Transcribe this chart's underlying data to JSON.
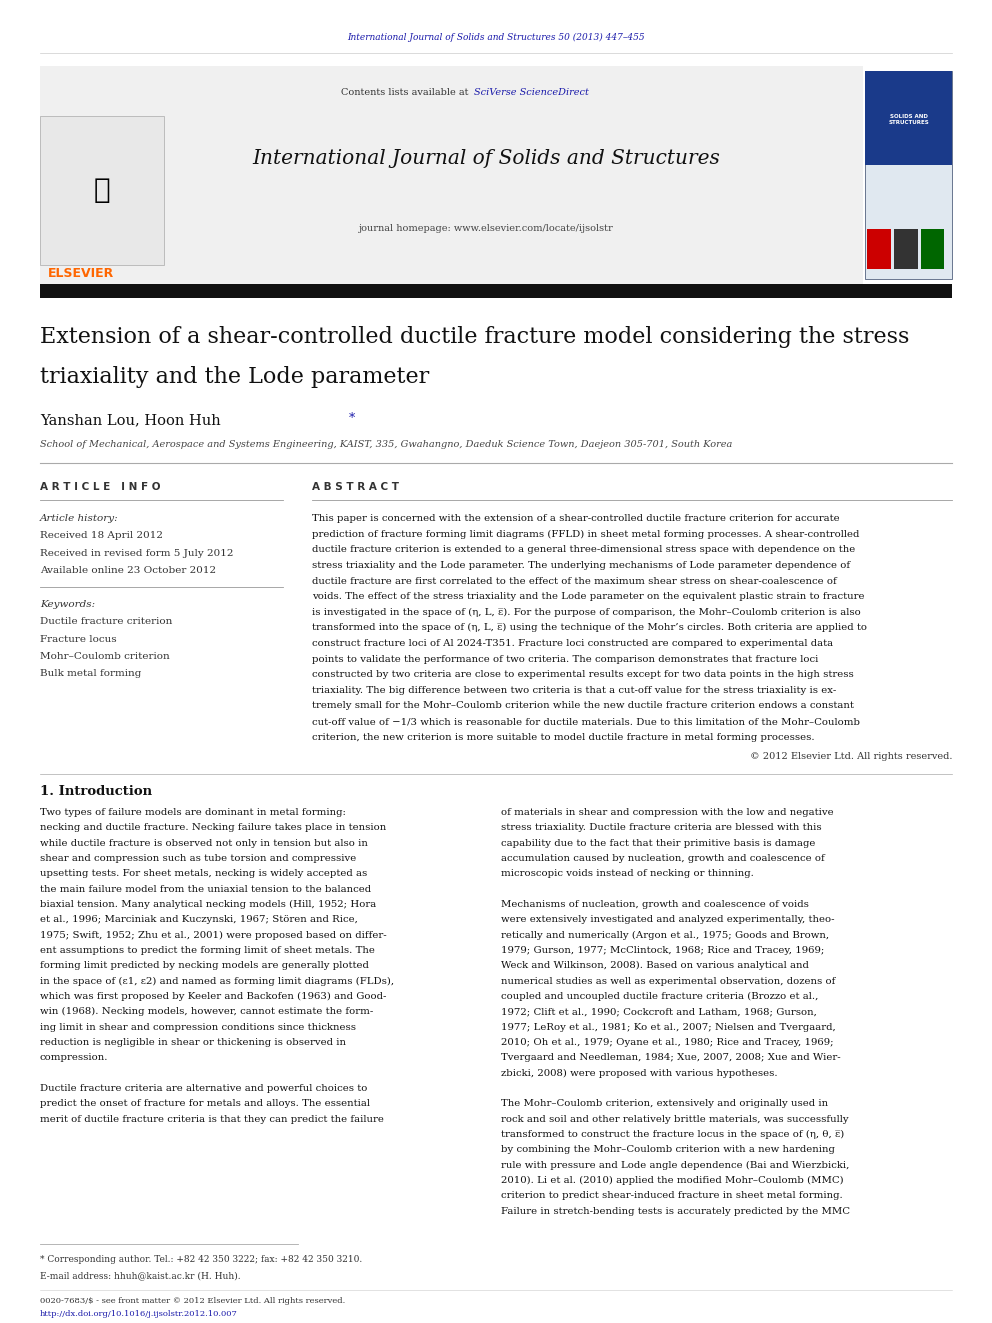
{
  "page_width": 9.92,
  "page_height": 13.23,
  "bg_color": "#ffffff",
  "header_journal_ref": "International Journal of Solids and Structures 50 (2013) 447–455",
  "header_ref_color": "#1a1aaa",
  "header_contents_text": "Contents lists available at ",
  "header_sciverse_text": "SciVerse ScienceDirect",
  "header_journal_title": "International Journal of Solids and Structures",
  "header_homepage": "journal homepage: www.elsevier.com/locate/ijsolstr",
  "elsevier_color": "#FF6600",
  "article_title_line1": "Extension of a shear-controlled ductile fracture model considering the stress",
  "article_title_line2": "triaxiality and the Lode parameter",
  "authors_main": "Yanshan Lou, Hoon Huh ",
  "authors_star": "*",
  "affiliation": "School of Mechanical, Aerospace and Systems Engineering, KAIST, 335, Gwahangno, Daeduk Science Town, Daejeon 305-701, South Korea",
  "section_article_info": "A R T I C L E   I N F O",
  "section_abstract": "A B S T R A C T",
  "article_history_label": "Article history:",
  "received_date": "Received 18 April 2012",
  "revised_date": "Received in revised form 5 July 2012",
  "online_date": "Available online 23 October 2012",
  "keywords_label": "Keywords:",
  "keywords": [
    "Ductile fracture criterion",
    "Fracture locus",
    "Mohr–Coulomb criterion",
    "Bulk metal forming"
  ],
  "copyright_text": "© 2012 Elsevier Ltd. All rights reserved.",
  "intro_heading": "1. Introduction",
  "abstract_lines": [
    "This paper is concerned with the extension of a shear-controlled ductile fracture criterion for accurate",
    "prediction of fracture forming limit diagrams (FFLD) in sheet metal forming processes. A shear-controlled",
    "ductile fracture criterion is extended to a general three-dimensional stress space with dependence on the",
    "stress triaxiality and the Lode parameter. The underlying mechanisms of Lode parameter dependence of",
    "ductile fracture are first correlated to the effect of the maximum shear stress on shear-coalescence of",
    "voids. The effect of the stress triaxiality and the Lode parameter on the equivalent plastic strain to fracture",
    "is investigated in the space of (η, L, ε̅). For the purpose of comparison, the Mohr–Coulomb criterion is also",
    "transformed into the space of (η, L, ε̅) using the technique of the Mohr’s circles. Both criteria are applied to",
    "construct fracture loci of Al 2024-T351. Fracture loci constructed are compared to experimental data",
    "points to validate the performance of two criteria. The comparison demonstrates that fracture loci",
    "constructed by two criteria are close to experimental results except for two data points in the high stress",
    "triaxiality. The big difference between two criteria is that a cut-off value for the stress triaxiality is ex-",
    "tremely small for the Mohr–Coulomb criterion while the new ductile fracture criterion endows a constant",
    "cut-off value of −1/3 which is reasonable for ductile materials. Due to this limitation of the Mohr–Coulomb",
    "criterion, the new criterion is more suitable to model ductile fracture in metal forming processes."
  ],
  "intro_col1_lines": [
    "Two types of failure models are dominant in metal forming:",
    "necking and ductile fracture. Necking failure takes place in tension",
    "while ductile fracture is observed not only in tension but also in",
    "shear and compression such as tube torsion and compressive",
    "upsetting tests. For sheet metals, necking is widely accepted as",
    "the main failure model from the uniaxial tension to the balanced",
    "biaxial tension. Many analytical necking models (Hill, 1952; Hora",
    "et al., 1996; Marciniak and Kuczynski, 1967; Stören and Rice,",
    "1975; Swift, 1952; Zhu et al., 2001) were proposed based on differ-",
    "ent assumptions to predict the forming limit of sheet metals. The",
    "forming limit predicted by necking models are generally plotted",
    "in the space of (ε1, ε2) and named as forming limit diagrams (FLDs),",
    "which was first proposed by Keeler and Backofen (1963) and Good-",
    "win (1968). Necking models, however, cannot estimate the form-",
    "ing limit in shear and compression conditions since thickness",
    "reduction is negligible in shear or thickening is observed in",
    "compression.",
    "",
    "Ductile fracture criteria are alternative and powerful choices to",
    "predict the onset of fracture for metals and alloys. The essential",
    "merit of ductile fracture criteria is that they can predict the failure"
  ],
  "intro_col2_lines": [
    "of materials in shear and compression with the low and negative",
    "stress triaxiality. Ductile fracture criteria are blessed with this",
    "capability due to the fact that their primitive basis is damage",
    "accumulation caused by nucleation, growth and coalescence of",
    "microscopic voids instead of necking or thinning.",
    "",
    "Mechanisms of nucleation, growth and coalescence of voids",
    "were extensively investigated and analyzed experimentally, theo-",
    "retically and numerically (Argon et al., 1975; Goods and Brown,",
    "1979; Gurson, 1977; McClintock, 1968; Rice and Tracey, 1969;",
    "Weck and Wilkinson, 2008). Based on various analytical and",
    "numerical studies as well as experimental observation, dozens of",
    "coupled and uncoupled ductile fracture criteria (Brozzo et al.,",
    "1972; Clift et al., 1990; Cockcroft and Latham, 1968; Gurson,",
    "1977; LeRoy et al., 1981; Ko et al., 2007; Nielsen and Tvergaard,",
    "2010; Oh et al., 1979; Oyane et al., 1980; Rice and Tracey, 1969;",
    "Tvergaard and Needleman, 1984; Xue, 2007, 2008; Xue and Wier-",
    "zbicki, 2008) were proposed with various hypotheses.",
    "",
    "The Mohr–Coulomb criterion, extensively and originally used in",
    "rock and soil and other relatively brittle materials, was successfully",
    "transformed to construct the fracture locus in the space of (η, θ, ε̅)",
    "by combining the Mohr–Coulomb criterion with a new hardening",
    "rule with pressure and Lode angle dependence (Bai and Wierzbicki,",
    "2010). Li et al. (2010) applied the modified Mohr–Coulomb (MMC)",
    "criterion to predict shear-induced fracture in sheet metal forming.",
    "Failure in stretch-bending tests is accurately predicted by the MMC"
  ],
  "footnote_star": "* Corresponding author. Tel.: +82 42 350 3222; fax: +82 42 350 3210.",
  "footnote_email": "E-mail address: hhuh@kaist.ac.kr (H. Huh).",
  "footer_issn": "0020-7683/$ - see front matter © 2012 Elsevier Ltd. All rights reserved.",
  "footer_doi": "http://dx.doi.org/10.1016/j.ijsolstr.2012.10.007",
  "link_color": "#1a1aaa",
  "gray_header_bg": "#f0f0f0",
  "cover_sq_colors": [
    "#cc0000",
    "#333333",
    "#006600"
  ]
}
